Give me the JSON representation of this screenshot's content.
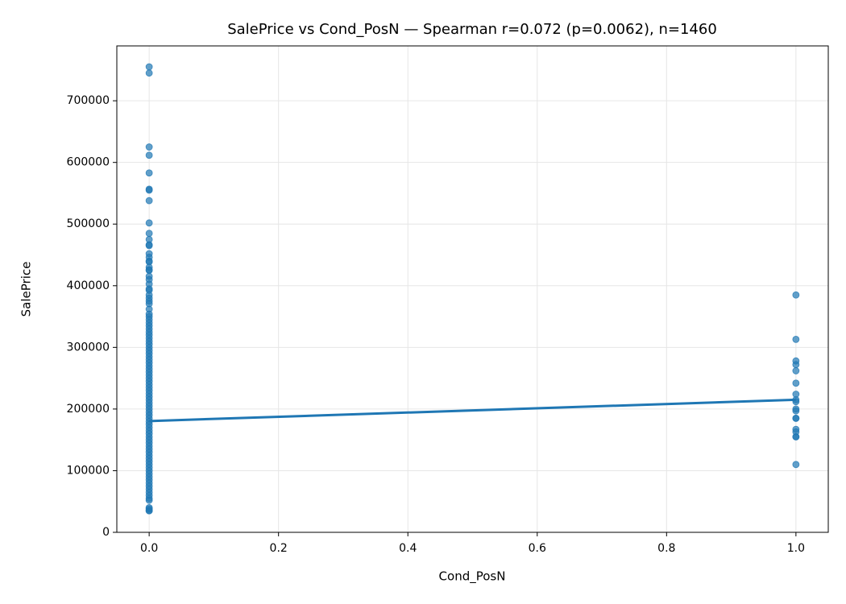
{
  "chart_data": {
    "type": "scatter",
    "title": "SalePrice vs Cond_PosN — Spearman r=0.072 (p=0.0062), n=1460",
    "xlabel": "Cond_PosN",
    "ylabel": "SalePrice",
    "xlim": [
      -0.05,
      1.05
    ],
    "ylim": [
      0,
      789000
    ],
    "xticks": [
      {
        "value": 0,
        "label": "0.0"
      },
      0.2,
      0.4,
      0.6,
      0.8,
      {
        "value": 1,
        "label": "1.0"
      }
    ],
    "yticks": [
      0,
      100000,
      200000,
      300000,
      400000,
      500000,
      600000,
      700000
    ],
    "grid": true,
    "series": [
      {
        "type": "scatter",
        "color": "#1f77b4",
        "x": [
          0,
          0,
          0,
          0,
          0,
          0,
          0,
          0,
          0,
          0,
          0,
          0,
          0,
          0,
          0,
          0,
          0,
          0,
          0,
          0,
          0,
          0,
          0,
          0,
          0,
          0,
          0,
          0,
          0,
          0,
          0,
          0,
          0,
          0,
          0,
          0,
          0,
          0,
          0,
          0,
          0,
          0,
          0,
          0,
          0,
          0,
          0,
          0,
          0,
          0,
          0,
          0,
          0,
          0,
          0,
          0,
          0,
          0,
          0,
          0,
          0,
          0,
          0,
          0,
          0,
          0,
          0,
          0,
          0,
          0,
          0,
          0,
          0,
          0,
          0,
          0,
          0,
          0,
          0,
          0,
          0,
          0,
          0,
          0,
          0,
          0,
          0,
          0,
          0,
          0,
          0,
          0,
          0,
          0,
          0,
          0,
          1,
          1,
          1,
          1,
          1,
          1,
          1,
          1,
          1,
          1,
          1,
          1,
          1,
          1,
          1,
          1,
          1,
          1
        ],
        "values": [
          755000,
          745000,
          625000,
          611657,
          582933,
          556581,
          555000,
          538000,
          501837,
          485000,
          475000,
          466500,
          465000,
          451950,
          446261,
          440000,
          438780,
          430000,
          426000,
          424870,
          415298,
          410000,
          402861,
          395000,
          392500,
          385000,
          380000,
          375000,
          370878,
          361919,
          354000,
          350000,
          345000,
          340000,
          335000,
          330000,
          325000,
          320000,
          315000,
          310000,
          305000,
          300000,
          295000,
          290000,
          285000,
          280000,
          275000,
          270000,
          265000,
          260000,
          255000,
          250000,
          245000,
          240000,
          235000,
          230000,
          225000,
          220000,
          215000,
          210000,
          205000,
          200000,
          195000,
          190000,
          185000,
          180000,
          175000,
          170000,
          165000,
          160000,
          155000,
          150000,
          145000,
          140000,
          135000,
          130000,
          125000,
          120000,
          115000,
          110000,
          105000,
          100000,
          95000,
          90000,
          85000,
          80000,
          75000,
          70000,
          65000,
          60000,
          55000,
          52000,
          40000,
          37900,
          35311,
          34900,
          385000,
          313000,
          278000,
          272000,
          262000,
          242000,
          224000,
          215000,
          212000,
          200000,
          197000,
          185000,
          185000,
          167000,
          163000,
          155000,
          155000,
          110000
        ]
      },
      {
        "type": "line",
        "color": "#1f77b4",
        "x": [
          0,
          1
        ],
        "values": [
          180500,
          215000
        ]
      }
    ]
  }
}
